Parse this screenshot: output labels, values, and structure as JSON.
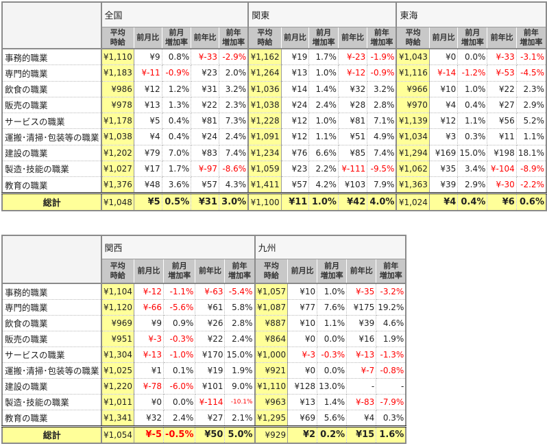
{
  "sub_headers": [
    "平均\n時給",
    "前月比",
    "前月\n増加率",
    "前年比",
    "前年\n増加率"
  ],
  "categories": [
    "事務的職業",
    "専門的職業",
    "飲食の職業",
    "販売の職業",
    "サービスの職業",
    "運搬･清掃･包装等の職業",
    "建設の職業",
    "製造･技能の職業",
    "教育の職業"
  ],
  "total_label": "総計",
  "tables": [
    {
      "regions": [
        {
          "name": "全国",
          "rows": [
            [
              "¥1,110",
              "¥9",
              "0.8%",
              "¥-33",
              "-2.9%"
            ],
            [
              "¥1,183",
              "¥-11",
              "-0.9%",
              "¥23",
              "2.0%"
            ],
            [
              "¥986",
              "¥12",
              "1.2%",
              "¥31",
              "3.2%"
            ],
            [
              "¥978",
              "¥13",
              "1.3%",
              "¥22",
              "2.3%"
            ],
            [
              "¥1,178",
              "¥5",
              "0.4%",
              "¥81",
              "7.3%"
            ],
            [
              "¥1,038",
              "¥4",
              "0.4%",
              "¥24",
              "2.4%"
            ],
            [
              "¥1,202",
              "¥79",
              "7.0%",
              "¥83",
              "7.4%"
            ],
            [
              "¥1,027",
              "¥17",
              "1.7%",
              "¥-97",
              "-8.6%"
            ],
            [
              "¥1,376",
              "¥48",
              "3.6%",
              "¥57",
              "4.3%"
            ]
          ],
          "total": [
            "¥1,048",
            "¥5",
            "0.5%",
            "¥31",
            "3.0%"
          ]
        },
        {
          "name": "関東",
          "rows": [
            [
              "¥1,162",
              "¥19",
              "1.7%",
              "¥-23",
              "-1.9%"
            ],
            [
              "¥1,264",
              "¥13",
              "1.0%",
              "¥-12",
              "-0.9%"
            ],
            [
              "¥1,036",
              "¥14",
              "1.4%",
              "¥32",
              "3.2%"
            ],
            [
              "¥1,038",
              "¥24",
              "2.4%",
              "¥28",
              "2.8%"
            ],
            [
              "¥1,228",
              "¥12",
              "1.0%",
              "¥81",
              "7.1%"
            ],
            [
              "¥1,091",
              "¥12",
              "1.1%",
              "¥51",
              "4.9%"
            ],
            [
              "¥1,234",
              "¥76",
              "6.6%",
              "¥85",
              "7.4%"
            ],
            [
              "¥1,059",
              "¥23",
              "2.2%",
              "¥-111",
              "-9.5%"
            ],
            [
              "¥1,411",
              "¥57",
              "4.2%",
              "¥103",
              "7.9%"
            ]
          ],
          "total": [
            "¥1,100",
            "¥11",
            "1.0%",
            "¥42",
            "4.0%"
          ]
        },
        {
          "name": "東海",
          "rows": [
            [
              "¥1,043",
              "¥0",
              "0.0%",
              "¥-33",
              "-3.1%"
            ],
            [
              "¥1,116",
              "¥-14",
              "-1.2%",
              "¥-53",
              "-4.5%"
            ],
            [
              "¥966",
              "¥10",
              "1.0%",
              "¥22",
              "2.3%"
            ],
            [
              "¥970",
              "¥4",
              "0.4%",
              "¥27",
              "2.9%"
            ],
            [
              "¥1,139",
              "¥12",
              "1.1%",
              "¥56",
              "5.2%"
            ],
            [
              "¥1,034",
              "¥3",
              "0.3%",
              "¥11",
              "1.1%"
            ],
            [
              "¥1,294",
              "¥169",
              "15.0%",
              "¥198",
              "18.1%"
            ],
            [
              "¥1,062",
              "¥35",
              "3.4%",
              "¥-104",
              "-8.9%"
            ],
            [
              "¥1,363",
              "¥39",
              "2.9%",
              "¥-30",
              "-2.2%"
            ]
          ],
          "total": [
            "¥1,024",
            "¥4",
            "0.4%",
            "¥6",
            "0.6%"
          ]
        }
      ]
    },
    {
      "regions": [
        {
          "name": "関西",
          "rows": [
            [
              "¥1,104",
              "¥-12",
              "-1.1%",
              "¥-63",
              "-5.4%"
            ],
            [
              "¥1,120",
              "¥-66",
              "-5.6%",
              "¥61",
              "5.8%"
            ],
            [
              "¥969",
              "¥9",
              "0.9%",
              "¥26",
              "2.8%"
            ],
            [
              "¥951",
              "¥-3",
              "-0.3%",
              "¥22",
              "2.4%"
            ],
            [
              "¥1,304",
              "¥-13",
              "-1.0%",
              "¥170",
              "15.0%"
            ],
            [
              "¥1,025",
              "¥1",
              "0.1%",
              "¥19",
              "1.9%"
            ],
            [
              "¥1,220",
              "¥-78",
              "-6.0%",
              "¥101",
              "9.0%"
            ],
            [
              "¥1,011",
              "¥0",
              "0.0%",
              "¥-114",
              "-10.1%"
            ],
            [
              "¥1,341",
              "¥32",
              "2.4%",
              "¥27",
              "2.1%"
            ]
          ],
          "total": [
            "¥1,054",
            "¥-5",
            "-0.5%",
            "¥50",
            "5.0%"
          ]
        },
        {
          "name": "九州",
          "rows": [
            [
              "¥1,057",
              "¥10",
              "1.0%",
              "¥-35",
              "-3.2%"
            ],
            [
              "¥1,087",
              "¥77",
              "7.6%",
              "¥175",
              "19.2%"
            ],
            [
              "¥887",
              "¥10",
              "1.1%",
              "¥39",
              "4.6%"
            ],
            [
              "¥864",
              "¥0",
              "0.0%",
              "¥16",
              "1.9%"
            ],
            [
              "¥1,000",
              "¥-3",
              "-0.3%",
              "¥-13",
              "-1.3%"
            ],
            [
              "¥921",
              "¥0",
              "0.0%",
              "¥-7",
              "-0.8%"
            ],
            [
              "¥1,110",
              "¥128",
              "13.0%",
              "-",
              "-"
            ],
            [
              "¥963",
              "¥13",
              "1.4%",
              "¥-83",
              "-7.9%"
            ],
            [
              "¥1,295",
              "¥69",
              "5.6%",
              "¥4",
              "0.3%"
            ]
          ],
          "total": [
            "¥929",
            "¥2",
            "0.2%",
            "¥15",
            "1.6%"
          ]
        }
      ]
    }
  ],
  "colors": {
    "highlight": "#ffff99",
    "negative": "#ff0000",
    "subheader": "#c8c8c8"
  }
}
